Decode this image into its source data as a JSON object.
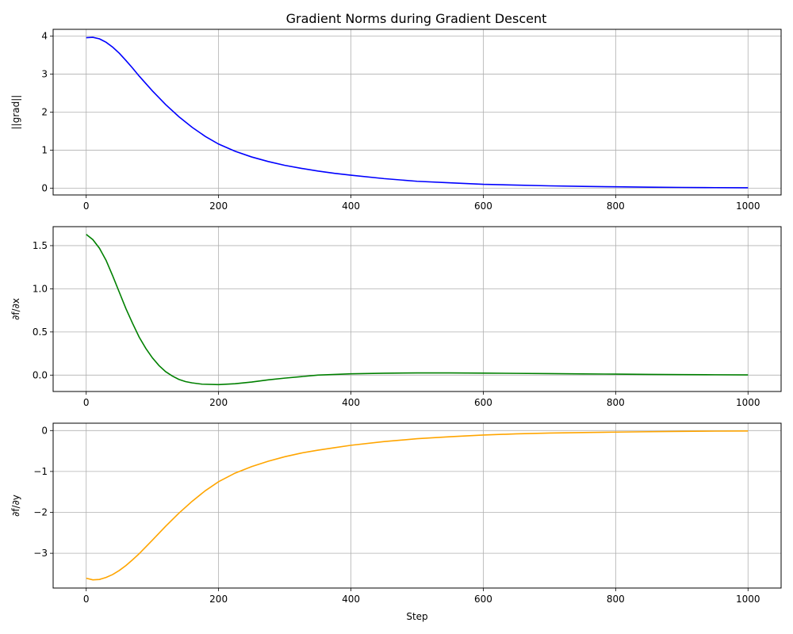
{
  "title": "Gradient Norms during Gradient Descent",
  "chart_data": [
    {
      "type": "line",
      "ylabel": "||grad||",
      "xlabel": "",
      "color": "#0000ff",
      "xlim": [
        -50,
        1050
      ],
      "ylim": [
        -0.18,
        4.18
      ],
      "xticks": [
        0,
        200,
        400,
        600,
        800,
        1000
      ],
      "yticks": [
        0,
        1,
        2,
        3,
        4
      ],
      "ytick_labels": [
        "0",
        "1",
        "2",
        "3",
        "4"
      ],
      "grid": true,
      "series": [
        {
          "x": [
            0,
            10,
            20,
            30,
            40,
            50,
            60,
            70,
            80,
            100,
            120,
            140,
            160,
            180,
            200,
            225,
            250,
            275,
            300,
            325,
            350,
            375,
            400,
            450,
            500,
            550,
            600,
            650,
            700,
            750,
            800,
            850,
            900,
            950,
            1000
          ],
          "values": [
            3.96,
            3.97,
            3.93,
            3.84,
            3.71,
            3.55,
            3.36,
            3.16,
            2.95,
            2.56,
            2.2,
            1.88,
            1.6,
            1.36,
            1.16,
            0.97,
            0.82,
            0.7,
            0.6,
            0.52,
            0.45,
            0.39,
            0.34,
            0.25,
            0.18,
            0.14,
            0.1,
            0.08,
            0.06,
            0.045,
            0.035,
            0.025,
            0.018,
            0.013,
            0.01
          ]
        }
      ]
    },
    {
      "type": "line",
      "ylabel": "∂f/∂x",
      "xlabel": "",
      "color": "#008000",
      "xlim": [
        -50,
        1050
      ],
      "ylim": [
        -0.19,
        1.72
      ],
      "xticks": [
        0,
        200,
        400,
        600,
        800,
        1000
      ],
      "yticks": [
        0,
        0.5,
        1,
        1.5
      ],
      "ytick_labels": [
        "0.0",
        "0.5",
        "1.0",
        "1.5"
      ],
      "grid": true,
      "series": [
        {
          "x": [
            0,
            10,
            20,
            30,
            40,
            50,
            60,
            70,
            80,
            90,
            100,
            110,
            120,
            130,
            140,
            150,
            160,
            175,
            200,
            225,
            250,
            275,
            300,
            350,
            400,
            450,
            500,
            550,
            600,
            650,
            700,
            750,
            800,
            850,
            900,
            950,
            1000
          ],
          "values": [
            1.63,
            1.57,
            1.47,
            1.33,
            1.15,
            0.96,
            0.77,
            0.6,
            0.44,
            0.31,
            0.2,
            0.11,
            0.04,
            -0.01,
            -0.05,
            -0.075,
            -0.09,
            -0.105,
            -0.11,
            -0.1,
            -0.08,
            -0.055,
            -0.035,
            0.0,
            0.015,
            0.022,
            0.025,
            0.025,
            0.023,
            0.02,
            0.017,
            0.014,
            0.011,
            0.008,
            0.006,
            0.004,
            0.002
          ]
        }
      ]
    },
    {
      "type": "line",
      "ylabel": "∂f/∂y",
      "xlabel": "Step",
      "color": "#ffa500",
      "xlim": [
        -50,
        1050
      ],
      "ylim": [
        -3.85,
        0.18
      ],
      "xticks": [
        0,
        200,
        400,
        600,
        800,
        1000
      ],
      "yticks": [
        -3,
        -2,
        -1,
        0
      ],
      "ytick_labels": [
        "−3",
        "−2",
        "−1",
        "0"
      ],
      "grid": true,
      "series": [
        {
          "x": [
            0,
            10,
            20,
            30,
            40,
            50,
            60,
            70,
            80,
            100,
            120,
            140,
            160,
            180,
            200,
            225,
            250,
            275,
            300,
            325,
            350,
            375,
            400,
            450,
            500,
            550,
            600,
            650,
            700,
            750,
            800,
            850,
            900,
            950,
            1000
          ],
          "values": [
            -3.61,
            -3.65,
            -3.64,
            -3.59,
            -3.52,
            -3.42,
            -3.3,
            -3.16,
            -3.01,
            -2.68,
            -2.34,
            -2.02,
            -1.73,
            -1.47,
            -1.25,
            -1.04,
            -0.88,
            -0.75,
            -0.64,
            -0.55,
            -0.48,
            -0.42,
            -0.36,
            -0.27,
            -0.2,
            -0.15,
            -0.11,
            -0.08,
            -0.06,
            -0.048,
            -0.038,
            -0.028,
            -0.02,
            -0.014,
            -0.01
          ]
        }
      ]
    }
  ]
}
